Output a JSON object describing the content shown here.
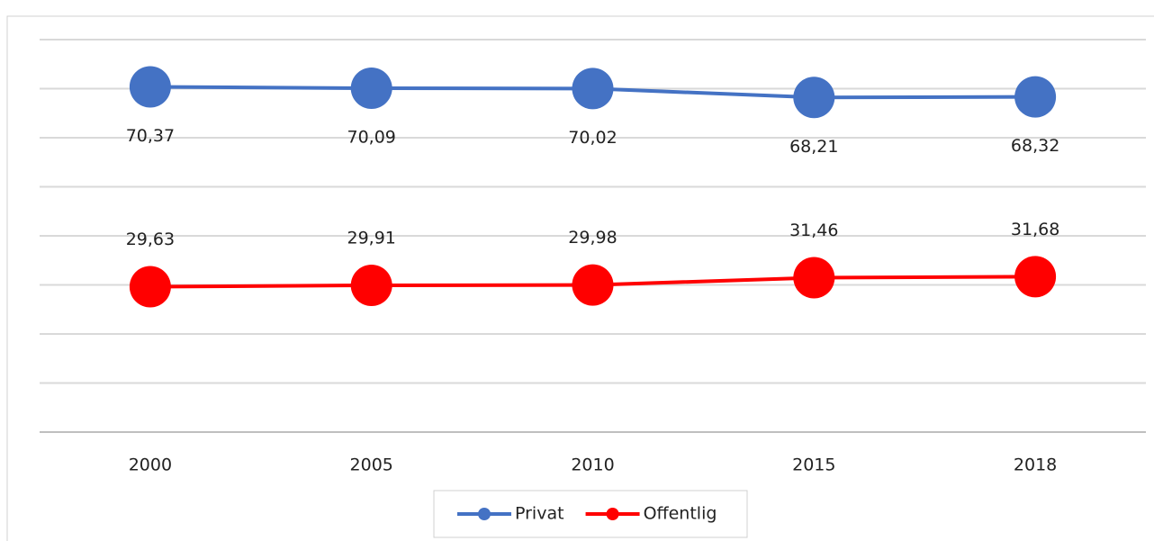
{
  "chart_data": {
    "type": "line",
    "categories": [
      "2000",
      "2005",
      "2010",
      "2015",
      "2018"
    ],
    "series": [
      {
        "name": "Privat",
        "color": "#4472c4",
        "values": [
          70.37,
          70.09,
          70.02,
          68.21,
          68.32
        ],
        "value_labels": [
          "70,37",
          "70,09",
          "70,02",
          "68,21",
          "68,32"
        ],
        "label_position": "below"
      },
      {
        "name": "Offentlig",
        "color": "#ff0000",
        "values": [
          29.63,
          29.91,
          29.98,
          31.46,
          31.68
        ],
        "value_labels": [
          "29,63",
          "29,91",
          "29,98",
          "31,46",
          "31,68"
        ],
        "label_position": "above"
      }
    ],
    "ylim": [
      0,
      80
    ],
    "yticks": [
      0,
      10,
      20,
      30,
      40,
      50,
      60,
      70,
      80
    ],
    "grid": true,
    "legend": "bottom"
  }
}
